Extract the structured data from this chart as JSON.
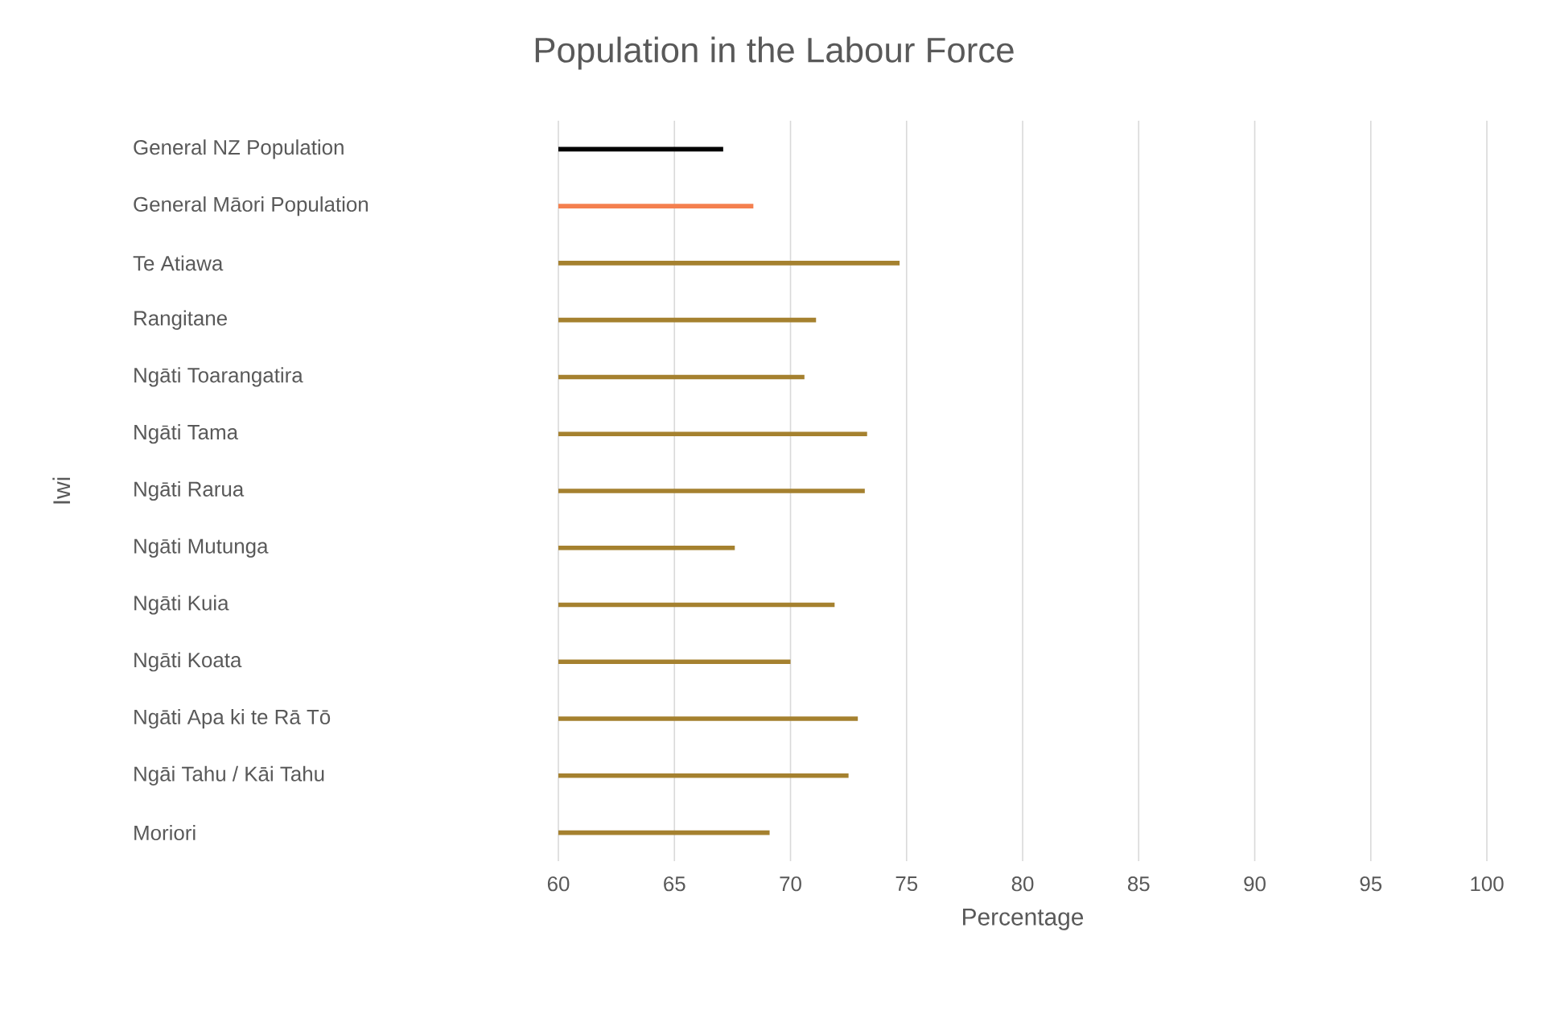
{
  "chart_data": {
    "type": "bar",
    "orientation": "horizontal",
    "title": "Population in the Labour Force",
    "xlabel": "Percentage",
    "ylabel": "Iwi",
    "categories": [
      "General NZ Population",
      "General Māori Population",
      "Te Atiawa",
      "Rangitane",
      "Ngāti Toarangatira",
      "Ngāti Tama",
      "Ngāti Rarua",
      "Ngāti Mutunga",
      "Ngāti Kuia",
      "Ngāti Koata",
      "Ngāti Apa ki te Rā Tō",
      "Ngāi Tahu / Kāi Tahu",
      "Moriori"
    ],
    "values": [
      67.1,
      68.4,
      74.7,
      71.1,
      70.6,
      73.3,
      73.2,
      67.6,
      71.9,
      70.0,
      72.9,
      72.5,
      69.1
    ],
    "colors": [
      "#000000",
      "#f4804f",
      "#a5812f",
      "#a5812f",
      "#a5812f",
      "#a5812f",
      "#a5812f",
      "#a5812f",
      "#a5812f",
      "#a5812f",
      "#a5812f",
      "#a5812f",
      "#a5812f"
    ],
    "xlim": [
      60,
      100
    ],
    "xticks": [
      60,
      65,
      70,
      75,
      80,
      85,
      90,
      95,
      100
    ],
    "grid": "x"
  }
}
